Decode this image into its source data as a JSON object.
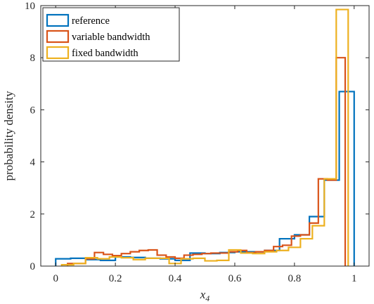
{
  "chart_data": {
    "type": "histogram",
    "xlabel": "x",
    "xlabel_subscript": "4",
    "ylabel": "probability density",
    "xlim": [
      -0.05,
      1.05
    ],
    "ylim": [
      0,
      10
    ],
    "x_ticks": [
      0,
      0.2,
      0.4,
      0.6,
      0.8,
      1
    ],
    "x_tick_labels": [
      "0",
      "0.2",
      "0.4",
      "0.6",
      "0.8",
      "1"
    ],
    "y_ticks": [
      0,
      2,
      4,
      6,
      8,
      10
    ],
    "y_tick_labels": [
      "0",
      "2",
      "4",
      "6",
      "8",
      "10"
    ],
    "grid": false,
    "legend_position": "top-left",
    "series": [
      {
        "name": "reference",
        "color": "#0072BD",
        "edges": [
          0,
          0.05,
          0.1,
          0.15,
          0.2,
          0.25,
          0.3,
          0.35,
          0.4,
          0.45,
          0.5,
          0.55,
          0.6,
          0.65,
          0.7,
          0.75,
          0.8,
          0.85,
          0.9,
          0.95,
          1.0
        ],
        "values": [
          0.28,
          0.3,
          0.25,
          0.22,
          0.35,
          0.33,
          0.3,
          0.28,
          0.22,
          0.5,
          0.48,
          0.52,
          0.55,
          0.55,
          0.6,
          1.05,
          1.2,
          1.9,
          3.3,
          6.7
        ]
      },
      {
        "name": "variable bandwidth",
        "color": "#D95319",
        "edges": [
          0.04,
          0.07,
          0.1,
          0.13,
          0.16,
          0.19,
          0.22,
          0.25,
          0.28,
          0.31,
          0.34,
          0.37,
          0.4,
          0.43,
          0.46,
          0.49,
          0.52,
          0.55,
          0.58,
          0.61,
          0.64,
          0.67,
          0.7,
          0.73,
          0.76,
          0.79,
          0.82,
          0.85,
          0.88,
          0.91,
          0.94,
          0.97
        ],
        "values": [
          0.1,
          0.1,
          0.28,
          0.52,
          0.45,
          0.4,
          0.48,
          0.55,
          0.6,
          0.62,
          0.42,
          0.35,
          0.3,
          0.42,
          0.45,
          0.48,
          0.5,
          0.5,
          0.55,
          0.6,
          0.52,
          0.55,
          0.6,
          0.75,
          0.8,
          1.15,
          1.2,
          1.65,
          3.35,
          3.3,
          8.0
        ]
      },
      {
        "name": "fixed bandwidth",
        "color": "#EDB120",
        "edges": [
          0.02,
          0.06,
          0.1,
          0.14,
          0.18,
          0.22,
          0.26,
          0.3,
          0.34,
          0.38,
          0.42,
          0.46,
          0.5,
          0.54,
          0.58,
          0.62,
          0.66,
          0.7,
          0.74,
          0.78,
          0.82,
          0.86,
          0.9,
          0.94,
          0.98
        ],
        "values": [
          0.05,
          0.1,
          0.32,
          0.28,
          0.35,
          0.32,
          0.25,
          0.3,
          0.3,
          0.1,
          0.28,
          0.3,
          0.2,
          0.22,
          0.62,
          0.5,
          0.48,
          0.55,
          0.6,
          0.72,
          1.05,
          1.55,
          3.35,
          9.85
        ]
      }
    ]
  }
}
